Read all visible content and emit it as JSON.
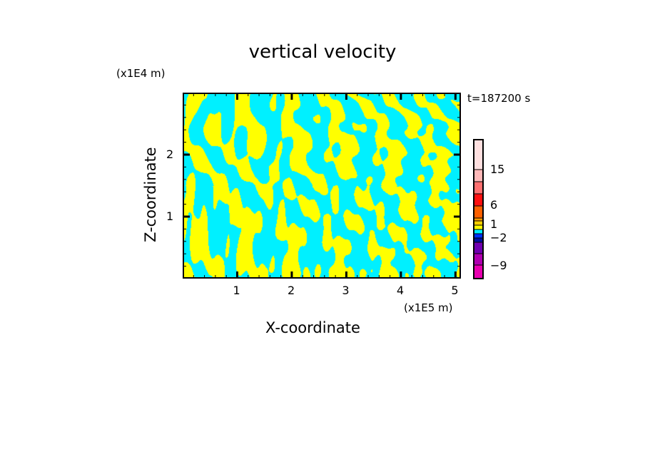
{
  "chart_data": {
    "type": "heatmap",
    "title": "vertical velocity",
    "xlabel": "X-coordinate",
    "ylabel": "Z-coordinate",
    "x_unit": "(x1E5 m)",
    "y_unit": "(x1E4 m)",
    "annotation": "t=187200 s",
    "xlim": [
      0,
      5.1
    ],
    "ylim": [
      0,
      3.0
    ],
    "xticks": [
      "1",
      "2",
      "3",
      "4",
      "5"
    ],
    "yticks": [
      "1",
      "2"
    ],
    "xtick_values": [
      1,
      2,
      3,
      4,
      5
    ],
    "ytick_values": [
      1,
      2
    ],
    "grid": false,
    "colorbar": {
      "tick_labels": [
        "15",
        "6",
        "1",
        "−2",
        "−9"
      ],
      "colors": [
        "#ffe0e0",
        "#ffb8b8",
        "#ff7070",
        "#ff1010",
        "#ff6000",
        "#ff9a00",
        "#ffd000",
        "#ffff00",
        "#00f0ff",
        "#0030ff",
        "#0010a0",
        "#7000b0",
        "#b000b0",
        "#e800b0"
      ]
    },
    "dominant_colors": {
      "positive": "#ffff00",
      "negative": "#00f0ff"
    }
  }
}
